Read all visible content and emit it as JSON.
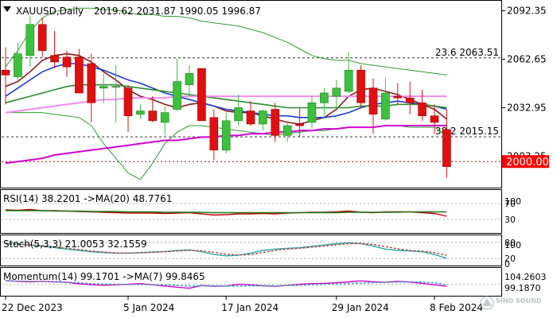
{
  "chart_data": {
    "type": "candlestick",
    "symbol_label": "XAUUSD,Daily",
    "ohlc_label": "2019.62 2031.87 1990.05 1996.87",
    "price_ylim": [
      1985,
      2098
    ],
    "price_ticks": [
      "2092.35",
      "2062.65",
      "2032.95",
      "2003.25"
    ],
    "current_price_label": "2000.00",
    "current_price": 2000.0,
    "fib_levels": [
      {
        "label": "23.6 2063.51",
        "value": 2063.51
      },
      {
        "label": "38.2 2015.15",
        "value": 2015.15
      }
    ],
    "x_labels": [
      "22 Dec 2023",
      "5 Jan 2024",
      "17 Jan 2024",
      "29 Jan 2024",
      "8 Feb 2024"
    ],
    "x_label_index": [
      0,
      10,
      18,
      27,
      35
    ],
    "candles": [
      {
        "o": 2056,
        "h": 2070,
        "l": 2035,
        "c": 2053
      },
      {
        "o": 2052,
        "h": 2073,
        "l": 2048,
        "c": 2066
      },
      {
        "o": 2065,
        "h": 2089,
        "l": 2058,
        "c": 2084
      },
      {
        "o": 2084,
        "h": 2088,
        "l": 2064,
        "c": 2068
      },
      {
        "o": 2065,
        "h": 2080,
        "l": 2057,
        "c": 2061
      },
      {
        "o": 2064,
        "h": 2068,
        "l": 2052,
        "c": 2058
      },
      {
        "o": 2064,
        "h": 2069,
        "l": 2042,
        "c": 2042
      },
      {
        "o": 2060,
        "h": 2066,
        "l": 2024,
        "c": 2036
      },
      {
        "o": 2045,
        "h": 2054,
        "l": 2036,
        "c": 2046
      },
      {
        "o": 2046,
        "h": 2059,
        "l": 2024,
        "c": 2046
      },
      {
        "o": 2045,
        "h": 2047,
        "l": 2018,
        "c": 2028
      },
      {
        "o": 2029,
        "h": 2035,
        "l": 2026,
        "c": 2031
      },
      {
        "o": 2031,
        "h": 2040,
        "l": 2024,
        "c": 2025
      },
      {
        "o": 2024,
        "h": 2034,
        "l": 2016,
        "c": 2030
      },
      {
        "o": 2032,
        "h": 2063,
        "l": 2031,
        "c": 2049
      },
      {
        "o": 2047,
        "h": 2059,
        "l": 2040,
        "c": 2054
      },
      {
        "o": 2057,
        "h": 2057,
        "l": 2025,
        "c": 2025
      },
      {
        "o": 2027,
        "h": 2032,
        "l": 2001,
        "c": 2007
      },
      {
        "o": 2007,
        "h": 2030,
        "l": 2005,
        "c": 2025
      },
      {
        "o": 2025,
        "h": 2041,
        "l": 2022,
        "c": 2033
      },
      {
        "o": 2031,
        "h": 2037,
        "l": 2022,
        "c": 2023
      },
      {
        "o": 2023,
        "h": 2032,
        "l": 2019,
        "c": 2031
      },
      {
        "o": 2032,
        "h": 2036,
        "l": 2012,
        "c": 2016
      },
      {
        "o": 2016,
        "h": 2025,
        "l": 2012,
        "c": 2022
      },
      {
        "o": 2023,
        "h": 2033,
        "l": 2015,
        "c": 2022
      },
      {
        "o": 2024,
        "h": 2040,
        "l": 2020,
        "c": 2036
      },
      {
        "o": 2036,
        "h": 2045,
        "l": 2028,
        "c": 2042
      },
      {
        "o": 2040,
        "h": 2050,
        "l": 2033,
        "c": 2045
      },
      {
        "o": 2043,
        "h": 2067,
        "l": 2042,
        "c": 2056
      },
      {
        "o": 2056,
        "h": 2059,
        "l": 2033,
        "c": 2036
      },
      {
        "o": 2045,
        "h": 2051,
        "l": 2017,
        "c": 2029
      },
      {
        "o": 2026,
        "h": 2051,
        "l": 2025,
        "c": 2042
      },
      {
        "o": 2040,
        "h": 2048,
        "l": 2035,
        "c": 2039
      },
      {
        "o": 2039,
        "h": 2049,
        "l": 2029,
        "c": 2036
      },
      {
        "o": 2036,
        "h": 2044,
        "l": 2025,
        "c": 2028
      },
      {
        "o": 2028,
        "h": 2035,
        "l": 2017,
        "c": 2024
      },
      {
        "o": 2019.62,
        "h": 2031.87,
        "l": 1990.05,
        "c": 1996.87
      }
    ],
    "series": [
      {
        "name": "BB upper",
        "color": "#2e9e2e",
        "values": [
          2058,
          2068,
          2080,
          2088,
          2092,
          2093,
          2094,
          2094,
          2093,
          2093,
          2091,
          2090,
          2090,
          2089,
          2089,
          2088,
          2086,
          2085,
          2084,
          2083,
          2081,
          2079,
          2076,
          2073,
          2069,
          2065,
          2063,
          2062,
          2062,
          2060,
          2059,
          2058,
          2057,
          2056,
          2055,
          2054,
          2053
        ]
      },
      {
        "name": "BB lower",
        "color": "#2e9e2e",
        "values": [
          2030,
          2030,
          2030,
          2030,
          2029,
          2028,
          2027,
          2022,
          2011,
          2002,
          1993,
          1989,
          1999,
          2011,
          2018,
          2022,
          2022,
          2021,
          2020,
          2019,
          2018,
          2017,
          2016,
          2017,
          2018,
          2019,
          2019,
          2020,
          2021,
          2021,
          2021,
          2022,
          2022,
          2021,
          2021,
          2021,
          2016
        ]
      },
      {
        "name": "MA5",
        "color": "#8b1a1a",
        "values": [
          2046,
          2049,
          2055,
          2062,
          2065,
          2066,
          2065,
          2061,
          2055,
          2050,
          2044,
          2040,
          2038,
          2035,
          2033,
          2035,
          2036,
          2034,
          2031,
          2030,
          2030,
          2028,
          2026,
          2024,
          2023,
          2025,
          2027,
          2032,
          2040,
          2044,
          2045,
          2043,
          2041,
          2038,
          2035,
          2032,
          2026
        ]
      },
      {
        "name": "MA10",
        "color": "#1a3ad6",
        "values": [
          2040,
          2045,
          2050,
          2055,
          2058,
          2060,
          2060,
          2058,
          2056,
          2053,
          2050,
          2048,
          2045,
          2042,
          2040,
          2038,
          2036,
          2034,
          2032,
          2031,
          2030,
          2029,
          2028,
          2028,
          2027,
          2027,
          2027,
          2028,
          2030,
          2033,
          2035,
          2036,
          2037,
          2036,
          2035,
          2034,
          2032
        ]
      },
      {
        "name": "MA20",
        "color": "#2e8b2e",
        "values": [
          2036,
          2038,
          2040,
          2042,
          2044,
          2046,
          2047,
          2047,
          2047,
          2047,
          2046,
          2045,
          2044,
          2043,
          2042,
          2041,
          2040,
          2039,
          2038,
          2037,
          2036,
          2035,
          2034,
          2033,
          2033,
          2033,
          2033,
          2033,
          2033,
          2034,
          2034,
          2034,
          2035,
          2035,
          2035,
          2034,
          2033
        ]
      },
      {
        "name": "MA50",
        "color": "#f08cf0",
        "values": [
          2030,
          2031,
          2032,
          2033,
          2034,
          2035,
          2036,
          2037,
          2038,
          2038,
          2039,
          2039,
          2039,
          2039,
          2040,
          2040,
          2040,
          2040,
          2040,
          2040,
          2040,
          2040,
          2040,
          2040,
          2040,
          2040,
          2040,
          2040,
          2040,
          2040,
          2040,
          2040,
          2040,
          2040,
          2040,
          2040,
          2040
        ]
      },
      {
        "name": "MA100",
        "color": "#d400d4",
        "values": [
          1999,
          2000,
          2001,
          2002,
          2004,
          2005,
          2006,
          2007,
          2008,
          2009,
          2010,
          2011,
          2012,
          2013,
          2013,
          2014,
          2015,
          2015,
          2016,
          2016,
          2017,
          2017,
          2018,
          2018,
          2019,
          2019,
          2020,
          2020,
          2021,
          2021,
          2021,
          2022,
          2022,
          2022,
          2022,
          2022,
          2022
        ]
      }
    ],
    "indicators": {
      "rsi": {
        "label": "RSI(14) 38.2201 ->MA(20) 48.7761",
        "ticks": [
          "100",
          "70",
          "30"
        ],
        "ylim": [
          0,
          100
        ],
        "rsi_values": [
          54,
          53,
          55,
          52,
          52,
          51,
          50,
          49,
          48,
          47,
          46,
          46,
          46,
          45,
          46,
          47,
          44,
          41,
          42,
          44,
          44,
          45,
          44,
          46,
          47,
          48,
          48,
          49,
          51,
          48,
          47,
          49,
          49,
          49,
          47,
          45,
          38
        ],
        "ma_values": [
          52,
          52,
          52,
          52,
          51,
          51,
          51,
          50,
          50,
          50,
          49,
          49,
          49,
          48,
          48,
          48,
          48,
          47,
          47,
          47,
          47,
          47,
          47,
          47,
          47,
          47,
          47,
          47,
          48,
          48,
          48,
          48,
          48,
          49,
          49,
          49,
          49
        ]
      },
      "stoch": {
        "label": "Stoch(5,3,3) 21.0053 32.1559",
        "ticks": [
          "100",
          "80",
          "20",
          "0"
        ],
        "ylim": [
          0,
          100
        ],
        "k_values": [
          75,
          74,
          70,
          66,
          60,
          55,
          50,
          45,
          42,
          40,
          40,
          42,
          44,
          46,
          50,
          52,
          45,
          35,
          30,
          32,
          40,
          50,
          55,
          58,
          60,
          65,
          70,
          75,
          78,
          75,
          66,
          55,
          50,
          48,
          45,
          35,
          21
        ],
        "d_values": [
          74,
          73,
          71,
          68,
          63,
          58,
          53,
          48,
          44,
          41,
          40,
          41,
          43,
          45,
          48,
          50,
          49,
          43,
          36,
          33,
          35,
          42,
          50,
          55,
          58,
          62,
          66,
          71,
          75,
          76,
          72,
          64,
          56,
          50,
          47,
          42,
          32
        ]
      },
      "momentum": {
        "label": "Momentum(14) 99.1701 ->MA(7) 99.8465",
        "ticks": [
          "104.2603",
          "99.1870"
        ],
        "ylim": [
          96,
          106
        ],
        "mom_values": [
          101.5,
          101.2,
          101.0,
          101.2,
          101.0,
          100.8,
          100.2,
          99.8,
          99.6,
          99.8,
          100.0,
          100.3,
          99.8,
          99.3,
          98.8,
          98.4,
          99.5,
          99.2,
          99.3,
          100.0,
          99.8,
          99.4,
          99.2,
          99.5,
          100.0,
          100.3,
          100.4,
          100.6,
          101.0,
          101.4,
          101.0,
          100.8,
          101.2,
          100.9,
          100.4,
          99.8,
          99.2
        ],
        "ma_values": [
          101.4,
          101.3,
          101.2,
          101.1,
          101.0,
          100.8,
          100.6,
          100.3,
          100.1,
          100.0,
          99.9,
          99.9,
          99.9,
          99.7,
          99.5,
          99.3,
          99.4,
          99.4,
          99.3,
          99.3,
          99.4,
          99.4,
          99.4,
          99.5,
          99.6,
          99.8,
          100.0,
          100.1,
          100.3,
          100.5,
          100.7,
          100.8,
          100.9,
          101.0,
          100.9,
          100.6,
          99.8
        ]
      }
    }
  },
  "colors": {
    "bull": "#3dc13d",
    "bear": "#e01010",
    "price_tag_bg": "#ff0000",
    "fib_line": "#333333",
    "current_line": "#c00000",
    "rsi_line": "#c00000",
    "rsi_ma": "#1a7a1a",
    "stoch_k": "#2aa8a8",
    "stoch_d": "#c04040",
    "mom_line": "#d400d4",
    "mom_ma": "#2aa8a8"
  },
  "watermark": "SINO SOUND"
}
